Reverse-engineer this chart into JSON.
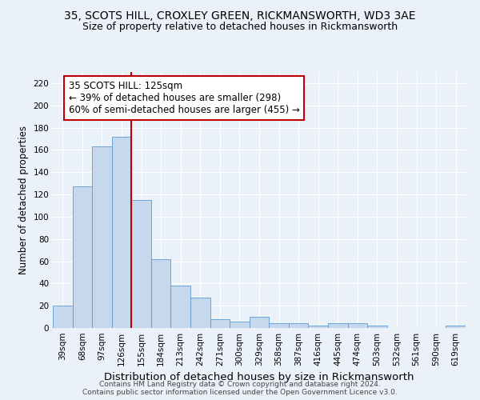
{
  "title1": "35, SCOTS HILL, CROXLEY GREEN, RICKMANSWORTH, WD3 3AE",
  "title2": "Size of property relative to detached houses in Rickmansworth",
  "xlabel": "Distribution of detached houses by size in Rickmansworth",
  "ylabel": "Number of detached properties",
  "categories": [
    "39sqm",
    "68sqm",
    "97sqm",
    "126sqm",
    "155sqm",
    "184sqm",
    "213sqm",
    "242sqm",
    "271sqm",
    "300sqm",
    "329sqm",
    "358sqm",
    "387sqm",
    "416sqm",
    "445sqm",
    "474sqm",
    "503sqm",
    "532sqm",
    "561sqm",
    "590sqm",
    "619sqm"
  ],
  "values": [
    20,
    127,
    163,
    172,
    115,
    62,
    38,
    27,
    8,
    6,
    10,
    4,
    4,
    2,
    4,
    4,
    2,
    0,
    0,
    0,
    2
  ],
  "bar_color": "#c5d8ed",
  "bar_edge_color": "#5b9bd5",
  "vline_color": "#c00000",
  "vline_x": 3.5,
  "annotation_box_text": "35 SCOTS HILL: 125sqm\n← 39% of detached houses are smaller (298)\n60% of semi-detached houses are larger (455) →",
  "ylim": [
    0,
    230
  ],
  "yticks": [
    0,
    20,
    40,
    60,
    80,
    100,
    120,
    140,
    160,
    180,
    200,
    220
  ],
  "footer1": "Contains HM Land Registry data © Crown copyright and database right 2024.",
  "footer2": "Contains public sector information licensed under the Open Government Licence v3.0.",
  "background_color": "#eaf1f8",
  "title1_fontsize": 10,
  "title2_fontsize": 9,
  "tick_fontsize": 7.5,
  "ylabel_fontsize": 8.5,
  "xlabel_fontsize": 9.5,
  "ann_fontsize": 8.5
}
